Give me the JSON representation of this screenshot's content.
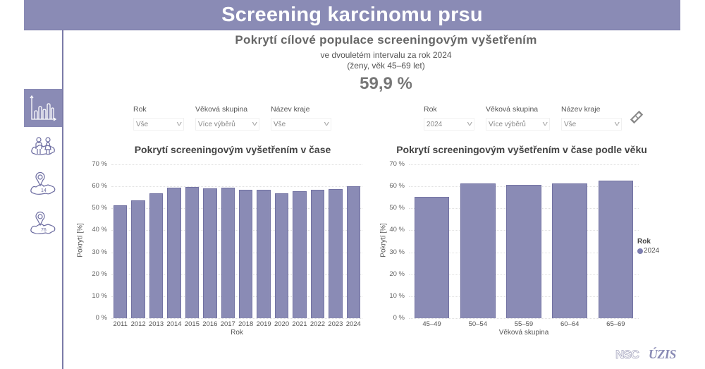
{
  "header": {
    "title": "Screening karcinomu prsu"
  },
  "sidebar": {
    "items": [
      {
        "name": "chart-view",
        "icon": "bar-chart-icon",
        "active": true
      },
      {
        "name": "population-view",
        "icon": "people-map-icon",
        "active": false
      },
      {
        "name": "regions-14-view",
        "icon": "map-pin-14-icon",
        "label": "14",
        "active": false
      },
      {
        "name": "districts-76-view",
        "icon": "map-pin-76-icon",
        "label": "76",
        "active": false
      }
    ]
  },
  "kpi": {
    "title": "Pokrytí cílové populace screeningovým vyšetřením",
    "subtitle1": "ve dvouletém intervalu za rok 2024",
    "subtitle2": "(ženy, věk 45–69 let)",
    "value": "59,9 %"
  },
  "filters_left": [
    {
      "label": "Rok",
      "value": "Vše"
    },
    {
      "label": "Věková skupina",
      "value": "Více výběrů"
    },
    {
      "label": "Název kraje",
      "value": "Vše"
    }
  ],
  "filters_right": [
    {
      "label": "Rok",
      "value": "2024"
    },
    {
      "label": "Věková skupina",
      "value": "Více výběrů"
    },
    {
      "label": "Název kraje",
      "value": "Vše"
    }
  ],
  "colors": {
    "accent": "#8a8bb5",
    "bar": "#8a8bb5",
    "bar_border": "#7272a2"
  },
  "chart_data": [
    {
      "type": "bar",
      "title": "Pokrytí screeningovým vyšetřením v čase",
      "xlabel": "Rok",
      "ylabel": "Pokrytí [%]",
      "ylim": [
        0,
        70
      ],
      "yticks": [
        "0 %",
        "10 %",
        "20 %",
        "30 %",
        "40 %",
        "50 %",
        "60 %",
        "70 %"
      ],
      "grid": true,
      "categories": [
        "2011",
        "2012",
        "2013",
        "2014",
        "2015",
        "2016",
        "2017",
        "2018",
        "2019",
        "2020",
        "2021",
        "2022",
        "2023",
        "2024"
      ],
      "values": [
        51.3,
        53.5,
        56.7,
        59.4,
        59.7,
        59.1,
        59.3,
        58.6,
        58.6,
        56.8,
        57.7,
        58.4,
        58.7,
        59.9
      ]
    },
    {
      "type": "bar",
      "title": "Pokrytí screeningovým vyšetřením v čase podle věku",
      "xlabel": "Věková skupina",
      "ylabel": "Pokrytí [%]",
      "ylim": [
        0,
        70
      ],
      "yticks": [
        "0 %",
        "10 %",
        "20 %",
        "30 %",
        "40 %",
        "50 %",
        "60 %",
        "70 %"
      ],
      "grid": true,
      "categories": [
        "45–49",
        "50–54",
        "55–59",
        "60–64",
        "65–69"
      ],
      "series": [
        {
          "name": "2024",
          "values": [
            55.2,
            61.3,
            60.6,
            61.2,
            62.5
          ]
        }
      ],
      "legend": {
        "title": "Rok",
        "position": "right",
        "entries": [
          "2024"
        ]
      }
    }
  ],
  "footer": {
    "logo1": "NSC",
    "logo2": "ÚZIS"
  }
}
